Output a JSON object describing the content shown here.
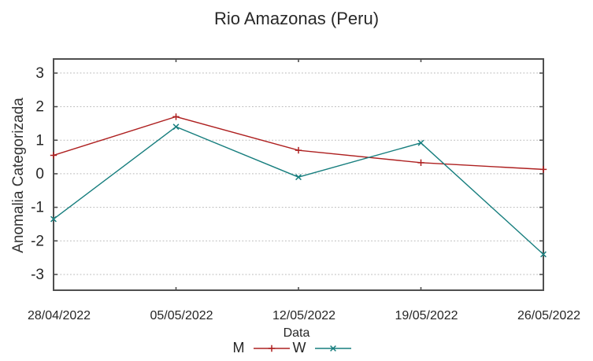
{
  "chart_data": {
    "type": "line",
    "title": "Rio Amazonas (Peru)",
    "xlabel": "Data",
    "ylabel": "Anomalia Categorizada",
    "x": [
      "28/04/2022",
      "05/05/2022",
      "12/05/2022",
      "19/05/2022",
      "26/05/2022"
    ],
    "series": [
      {
        "name": "M",
        "color": "#ae2020",
        "marker": "plus",
        "values": [
          0.55,
          1.7,
          0.7,
          0.33,
          0.13
        ]
      },
      {
        "name": "W",
        "color": "#177e7e",
        "marker": "cross",
        "values": [
          -1.35,
          1.4,
          -0.1,
          0.92,
          -2.4
        ]
      }
    ],
    "yticks": [
      -3,
      -2,
      -1,
      0,
      1,
      2,
      3
    ],
    "ylim": [
      -3.47,
      3.42
    ],
    "grid": true,
    "legend_position": "bottom-center",
    "colors": {
      "border": "#4f4f4f",
      "grid": "#b9b9b9",
      "text": "#262626"
    }
  }
}
